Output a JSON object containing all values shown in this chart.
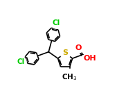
{
  "bg_color": "#ffffff",
  "atom_colors": {
    "C": "#000000",
    "O": "#ff0000",
    "S": "#ccaa00",
    "Cl": "#00cc00"
  },
  "bond_color": "#000000",
  "bond_lw": 1.2,
  "font_size": 7.5,
  "xlim": [
    -3.5,
    3.8
  ],
  "ylim": [
    -2.8,
    4.5
  ],
  "figsize": [
    1.82,
    1.54
  ],
  "dpi": 100
}
